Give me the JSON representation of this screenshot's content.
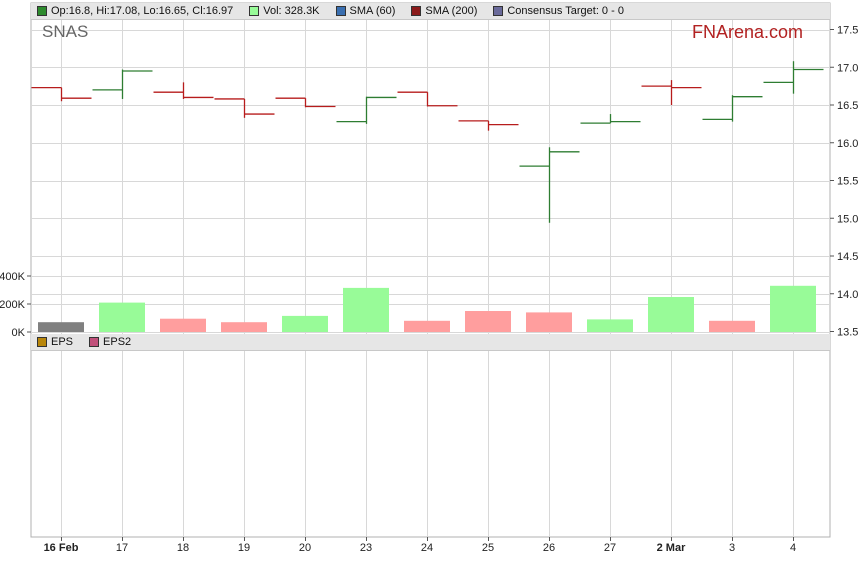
{
  "legend_top": {
    "items": [
      {
        "label": "Op:16.8, Hi:17.08, Lo:16.65, Cl:16.97",
        "color": "#2e8b2e"
      },
      {
        "label": "Vol: 328.3K",
        "color": "#98fb98"
      },
      {
        "label": "SMA (60)",
        "color": "#3a6fb0"
      },
      {
        "label": "SMA (200)",
        "color": "#8b1a1a"
      },
      {
        "label": "Consensus Target: 0 - 0",
        "color": "#6a6a9a"
      }
    ]
  },
  "legend_bottom": {
    "items": [
      {
        "label": "EPS",
        "color": "#b8860b"
      },
      {
        "label": "EPS2",
        "color": "#c0507a"
      }
    ]
  },
  "ticker": "SNAS",
  "brand": "FNArena.com",
  "colors": {
    "up": "#2e7d32",
    "down": "#b71c1c",
    "vol_up": "#98fb98",
    "vol_down": "#ff9e9e",
    "vol_first": "#808080",
    "grid": "#d8d8d8"
  },
  "chart_data": {
    "type": "ohlc",
    "categories": [
      "16 Feb",
      "17",
      "18",
      "19",
      "20",
      "23",
      "24",
      "25",
      "26",
      "27",
      "2 Mar",
      "3",
      "4"
    ],
    "bold_categories": [
      "16 Feb",
      "2 Mar"
    ],
    "ohlc": [
      {
        "open": 16.73,
        "high": 16.73,
        "low": 16.55,
        "close": 16.59
      },
      {
        "open": 16.7,
        "high": 16.97,
        "low": 16.58,
        "close": 16.95
      },
      {
        "open": 16.67,
        "high": 16.8,
        "low": 16.58,
        "close": 16.6
      },
      {
        "open": 16.58,
        "high": 16.58,
        "low": 16.33,
        "close": 16.38
      },
      {
        "open": 16.59,
        "high": 16.59,
        "low": 16.47,
        "close": 16.48
      },
      {
        "open": 16.28,
        "high": 16.61,
        "low": 16.25,
        "close": 16.6
      },
      {
        "open": 16.67,
        "high": 16.67,
        "low": 16.48,
        "close": 16.49
      },
      {
        "open": 16.29,
        "high": 16.29,
        "low": 16.16,
        "close": 16.24
      },
      {
        "open": 15.69,
        "high": 15.94,
        "low": 14.94,
        "close": 15.88
      },
      {
        "open": 16.26,
        "high": 16.38,
        "low": 16.26,
        "close": 16.28
      },
      {
        "open": 16.75,
        "high": 16.83,
        "low": 16.5,
        "close": 16.73
      },
      {
        "open": 16.31,
        "high": 16.63,
        "low": 16.28,
        "close": 16.61
      },
      {
        "open": 16.8,
        "high": 17.08,
        "low": 16.65,
        "close": 16.97
      }
    ],
    "volume": [
      70000,
      210000,
      95000,
      70000,
      115000,
      315000,
      80000,
      150000,
      140000,
      90000,
      250000,
      80000,
      330000
    ],
    "volume_direction": [
      "neutral",
      "up",
      "down",
      "down",
      "up",
      "up",
      "down",
      "down",
      "down",
      "up",
      "up",
      "down",
      "up"
    ],
    "price_axis": {
      "ticks": [
        "13.5",
        "14.0",
        "14.5",
        "15.0",
        "15.5",
        "16.0",
        "16.5",
        "17.0",
        "17.5"
      ],
      "ylim": [
        13.5,
        17.5
      ]
    },
    "volume_axis": {
      "ticks": [
        "0K",
        "200K",
        "400K"
      ],
      "ylim": [
        0,
        400000
      ]
    },
    "grid": true
  }
}
